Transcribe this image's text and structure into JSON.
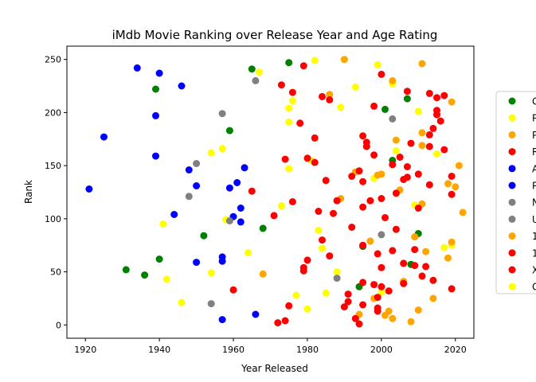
{
  "chart_data": {
    "type": "scatter",
    "title": "iMdb Movie Ranking over Release Year and Age Rating",
    "xlabel": "Year Released",
    "ylabel": "Rank",
    "xlim": [
      1915,
      2025
    ],
    "ylim": [
      -12.5,
      262.5
    ],
    "xticks": [
      1920,
      1940,
      1960,
      1980,
      2000,
      2020
    ],
    "yticks": [
      0,
      50,
      100,
      150,
      200,
      250
    ],
    "grid": false,
    "legend_position": "right (clipped)",
    "legend": [
      {
        "label": "G",
        "color": "#008000"
      },
      {
        "label": "P",
        "color": "#ffff00"
      },
      {
        "label": "P",
        "color": "#ffa500"
      },
      {
        "label": "R",
        "color": "#ff0000"
      },
      {
        "label": "A",
        "color": "#0000ff"
      },
      {
        "label": "P",
        "color": "#0000ff"
      },
      {
        "label": "N",
        "color": "#808080"
      },
      {
        "label": "U",
        "color": "#808080"
      },
      {
        "label": "1",
        "color": "#ffa500"
      },
      {
        "label": "1",
        "color": "#ff0000"
      },
      {
        "label": "X",
        "color": "#ff0000"
      },
      {
        "label": "G",
        "color": "#ffff00"
      }
    ],
    "series": [
      {
        "color": "#008000",
        "points": [
          [
            1931,
            52
          ],
          [
            1936,
            47
          ],
          [
            1939,
            222
          ],
          [
            1940,
            62
          ],
          [
            1952,
            84
          ],
          [
            1959,
            183
          ],
          [
            1965,
            241
          ],
          [
            1968,
            91
          ],
          [
            1975,
            247
          ],
          [
            1994,
            36
          ],
          [
            1995,
            74
          ],
          [
            2001,
            203
          ],
          [
            2003,
            155
          ],
          [
            2007,
            213
          ],
          [
            2008,
            57
          ],
          [
            2010,
            86
          ]
        ]
      },
      {
        "color": "#ffff00",
        "points": [
          [
            1941,
            95
          ],
          [
            1942,
            43
          ],
          [
            1946,
            21
          ],
          [
            1954,
            49
          ],
          [
            1954,
            162
          ],
          [
            1957,
            166
          ],
          [
            1958,
            99
          ],
          [
            1964,
            68
          ],
          [
            1967,
            238
          ],
          [
            1973,
            112
          ],
          [
            1975,
            147
          ],
          [
            1975,
            191
          ],
          [
            1975,
            204
          ],
          [
            1976,
            211
          ],
          [
            1977,
            28
          ],
          [
            1980,
            15
          ],
          [
            1981,
            155
          ],
          [
            1982,
            249
          ],
          [
            1983,
            89
          ],
          [
            1984,
            72
          ],
          [
            1985,
            30
          ],
          [
            1988,
            50
          ],
          [
            1989,
            205
          ],
          [
            1993,
            224
          ],
          [
            1998,
            138
          ],
          [
            1999,
            245
          ],
          [
            2000,
            31
          ],
          [
            2003,
            227
          ],
          [
            2004,
            164
          ],
          [
            2006,
            40
          ],
          [
            2009,
            113
          ],
          [
            2010,
            201
          ],
          [
            2015,
            161
          ],
          [
            2017,
            73
          ],
          [
            2019,
            75
          ]
        ]
      },
      {
        "color": "#ffa500",
        "points": [
          [
            1968,
            48
          ],
          [
            1986,
            217
          ],
          [
            1989,
            119
          ],
          [
            1990,
            250
          ],
          [
            1993,
            144
          ],
          [
            1994,
            10
          ],
          [
            1997,
            79
          ],
          [
            1998,
            25
          ],
          [
            1999,
            141
          ],
          [
            2000,
            142
          ],
          [
            2001,
            9
          ],
          [
            2002,
            13
          ],
          [
            2003,
            6
          ],
          [
            2003,
            230
          ],
          [
            2004,
            174
          ],
          [
            2005,
            127
          ],
          [
            2006,
            41
          ],
          [
            2008,
            3
          ],
          [
            2009,
            83
          ],
          [
            2010,
            14
          ],
          [
            2011,
            114
          ],
          [
            2011,
            169
          ],
          [
            2011,
            181
          ],
          [
            2011,
            246
          ],
          [
            2012,
            69
          ],
          [
            2014,
            25
          ],
          [
            2018,
            63
          ],
          [
            2018,
            133
          ],
          [
            2019,
            78
          ],
          [
            2019,
            210
          ],
          [
            2020,
            130
          ],
          [
            2021,
            150
          ],
          [
            2022,
            106
          ]
        ]
      },
      {
        "color": "#ff0000",
        "points": [
          [
            1960,
            33
          ],
          [
            1965,
            126
          ],
          [
            1971,
            103
          ],
          [
            1972,
            2
          ],
          [
            1973,
            226
          ],
          [
            1974,
            4
          ],
          [
            1974,
            156
          ],
          [
            1975,
            18
          ],
          [
            1976,
            116
          ],
          [
            1976,
            219
          ],
          [
            1978,
            190
          ],
          [
            1979,
            51
          ],
          [
            1979,
            54
          ],
          [
            1979,
            244
          ],
          [
            1980,
            61
          ],
          [
            1980,
            157
          ],
          [
            1982,
            153
          ],
          [
            1982,
            176
          ],
          [
            1983,
            107
          ],
          [
            1984,
            80
          ],
          [
            1984,
            215
          ],
          [
            1985,
            136
          ],
          [
            1986,
            65
          ],
          [
            1986,
            212
          ],
          [
            1987,
            105
          ],
          [
            1988,
            117
          ],
          [
            1990,
            17
          ],
          [
            1991,
            22
          ],
          [
            1991,
            29
          ],
          [
            1992,
            92
          ],
          [
            1992,
            140
          ],
          [
            1993,
            6
          ],
          [
            1994,
            1
          ],
          [
            1994,
            145
          ],
          [
            1995,
            19
          ],
          [
            1995,
            40
          ],
          [
            1995,
            75
          ],
          [
            1995,
            111
          ],
          [
            1995,
            135
          ],
          [
            1995,
            178
          ],
          [
            1996,
            168
          ],
          [
            1996,
            172
          ],
          [
            1997,
            117
          ],
          [
            1998,
            38
          ],
          [
            1998,
            160
          ],
          [
            1998,
            206
          ],
          [
            1999,
            13
          ],
          [
            1999,
            16
          ],
          [
            1999,
            26
          ],
          [
            1999,
            67
          ],
          [
            2000,
            36
          ],
          [
            2000,
            54
          ],
          [
            2000,
            119
          ],
          [
            2000,
            236
          ],
          [
            2001,
            101
          ],
          [
            2002,
            32
          ],
          [
            2003,
            70
          ],
          [
            2003,
            151
          ],
          [
            2004,
            90
          ],
          [
            2004,
            124
          ],
          [
            2005,
            158
          ],
          [
            2006,
            39
          ],
          [
            2006,
            58
          ],
          [
            2006,
            137
          ],
          [
            2007,
            139
          ],
          [
            2007,
            149
          ],
          [
            2007,
            220
          ],
          [
            2008,
            171
          ],
          [
            2009,
            56
          ],
          [
            2009,
            71
          ],
          [
            2010,
            110
          ],
          [
            2010,
            142
          ],
          [
            2011,
            46
          ],
          [
            2012,
            55
          ],
          [
            2013,
            132
          ],
          [
            2013,
            168
          ],
          [
            2013,
            179
          ],
          [
            2013,
            218
          ],
          [
            2014,
            42
          ],
          [
            2014,
            185
          ],
          [
            2015,
            198
          ],
          [
            2015,
            202
          ],
          [
            2015,
            214
          ],
          [
            2016,
            192
          ],
          [
            2017,
            165
          ],
          [
            2017,
            216
          ],
          [
            2019,
            34
          ],
          [
            2019,
            123
          ],
          [
            2019,
            140
          ]
        ]
      },
      {
        "color": "#0000ff",
        "points": [
          [
            1921,
            128
          ],
          [
            1925,
            177
          ],
          [
            1934,
            242
          ],
          [
            1939,
            159
          ],
          [
            1939,
            197
          ],
          [
            1940,
            237
          ],
          [
            1944,
            104
          ],
          [
            1946,
            225
          ],
          [
            1948,
            146
          ],
          [
            1950,
            59
          ],
          [
            1950,
            131
          ],
          [
            1957,
            5
          ],
          [
            1957,
            60
          ],
          [
            1957,
            64
          ],
          [
            1959,
            129
          ],
          [
            1960,
            102
          ],
          [
            1961,
            134
          ],
          [
            1962,
            97
          ],
          [
            1962,
            110
          ],
          [
            1963,
            148
          ],
          [
            1966,
            10
          ]
        ]
      },
      {
        "color": "#808080",
        "points": [
          [
            1948,
            121
          ],
          [
            1950,
            152
          ],
          [
            1954,
            20
          ],
          [
            1957,
            199
          ],
          [
            1959,
            98
          ],
          [
            1966,
            230
          ],
          [
            1988,
            44
          ],
          [
            2000,
            85
          ],
          [
            2003,
            194
          ]
        ]
      }
    ]
  }
}
